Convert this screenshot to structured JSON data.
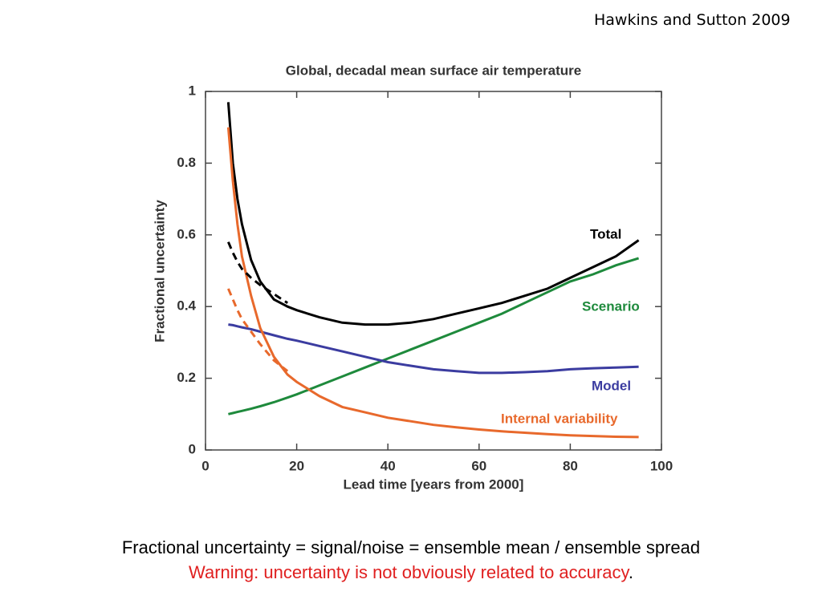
{
  "source": "Hawkins and Sutton 2009",
  "caption_line1": "Fractional uncertainty = signal/noise = ensemble mean / ensemble spread",
  "caption_warning": "Warning: uncertainty is not obviously related to accuracy",
  "caption_period": ".",
  "chart_data": {
    "type": "line",
    "title": "Global, decadal mean surface air temperature",
    "xlabel": "Lead time  [years from 2000]",
    "ylabel": "Fractional uncertainty",
    "x": [
      5,
      6,
      7,
      8,
      10,
      12,
      15,
      18,
      20,
      25,
      30,
      35,
      40,
      45,
      50,
      55,
      60,
      65,
      70,
      75,
      80,
      85,
      90,
      95
    ],
    "series": [
      {
        "name": "Total",
        "color": "#000000",
        "values": [
          0.97,
          0.8,
          0.7,
          0.63,
          0.53,
          0.47,
          0.42,
          0.4,
          0.39,
          0.37,
          0.355,
          0.35,
          0.35,
          0.355,
          0.365,
          0.38,
          0.395,
          0.41,
          0.43,
          0.45,
          0.48,
          0.51,
          0.54,
          0.585
        ]
      },
      {
        "name": "Scenario",
        "color": "#1e8a3c",
        "values": [
          0.1,
          0.103,
          0.106,
          0.109,
          0.115,
          0.122,
          0.133,
          0.146,
          0.155,
          0.18,
          0.205,
          0.23,
          0.255,
          0.28,
          0.305,
          0.33,
          0.355,
          0.38,
          0.41,
          0.44,
          0.47,
          0.49,
          0.515,
          0.535
        ]
      },
      {
        "name": "Model",
        "color": "#3b3ca0",
        "values": [
          0.35,
          0.348,
          0.345,
          0.342,
          0.337,
          0.33,
          0.32,
          0.31,
          0.305,
          0.29,
          0.275,
          0.26,
          0.245,
          0.235,
          0.225,
          0.22,
          0.215,
          0.215,
          0.217,
          0.22,
          0.225,
          0.228,
          0.23,
          0.232
        ]
      },
      {
        "name": "Internal variability",
        "color": "#e8692c",
        "values": [
          0.9,
          0.75,
          0.63,
          0.54,
          0.43,
          0.34,
          0.26,
          0.21,
          0.19,
          0.15,
          0.12,
          0.105,
          0.09,
          0.08,
          0.07,
          0.063,
          0.057,
          0.052,
          0.048,
          0.044,
          0.041,
          0.039,
          0.037,
          0.036
        ]
      },
      {
        "color": "#000000",
        "dashed": true,
        "values": [
          0.58,
          0.55,
          0.525,
          0.505,
          0.48,
          0.46,
          0.435,
          0.41,
          null,
          null,
          null,
          null,
          null,
          null,
          null,
          null,
          null,
          null,
          null,
          null,
          null,
          null,
          null,
          null
        ]
      },
      {
        "color": "#e8692c",
        "dashed": true,
        "values": [
          0.45,
          0.42,
          0.39,
          0.365,
          0.33,
          0.295,
          0.25,
          0.22,
          null,
          null,
          null,
          null,
          null,
          null,
          null,
          null,
          null,
          null,
          null,
          null,
          null,
          null,
          null,
          null
        ]
      }
    ],
    "xlim": [
      0,
      100
    ],
    "xticks": [
      0,
      20,
      40,
      60,
      80,
      100
    ],
    "ylim": [
      0,
      1
    ],
    "yticks": [
      0,
      0.2,
      0.4,
      0.6,
      0.8,
      1
    ]
  }
}
